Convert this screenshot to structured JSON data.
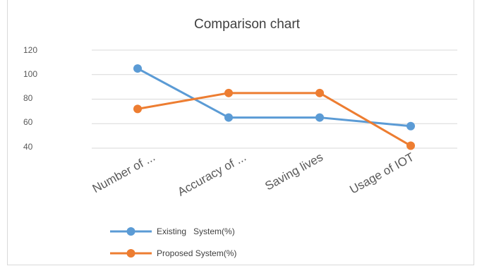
{
  "chart_data": {
    "type": "line",
    "title": "Comparison chart",
    "categories": [
      "Number of ...",
      "Accuracy of ...",
      "Saving lives",
      "Usage of IOT"
    ],
    "ylim": [
      40,
      120
    ],
    "yticks": [
      "120",
      "100",
      "80",
      "60",
      "40"
    ],
    "grid": true,
    "legend_position": "bottom-left",
    "series": [
      {
        "name": "Existing   System(%)",
        "values": [
          105,
          65,
          65,
          58
        ],
        "color": "#5b9bd5"
      },
      {
        "name": "Proposed System(%)",
        "values": [
          72,
          85,
          85,
          42
        ],
        "color": "#ed7d31"
      }
    ]
  }
}
